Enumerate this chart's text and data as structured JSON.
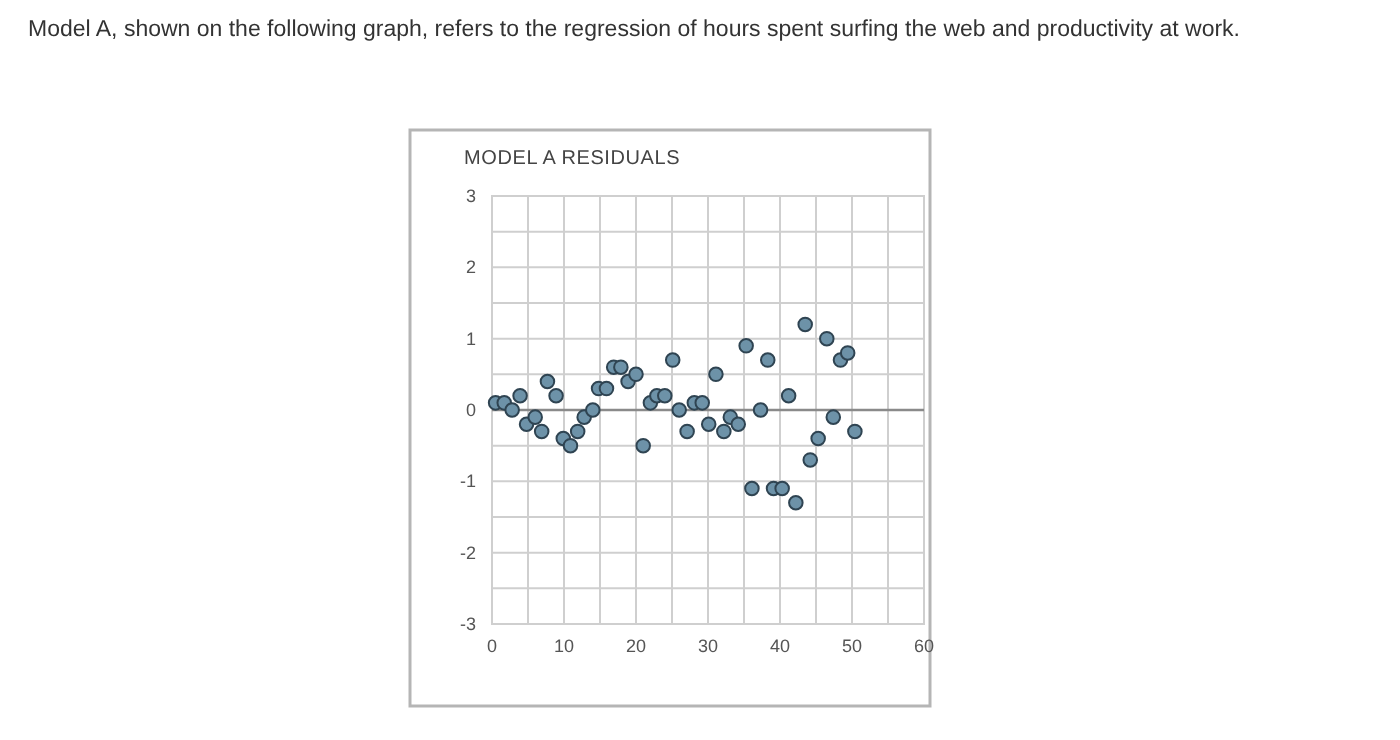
{
  "chart_data": {
    "type": "scatter",
    "title": "MODEL A RESIDUALS",
    "annotations": [
      "Model A, shown on the following graph, refers to the regression of hours spent surfing the web and productivity at work."
    ],
    "x": [
      0.5,
      1.7,
      2.8,
      3.9,
      4.8,
      6,
      6.9,
      7.7,
      8.9,
      9.9,
      10.9,
      11.9,
      12.8,
      14,
      14.8,
      15.9,
      16.9,
      17.9,
      18.9,
      20,
      21,
      22,
      22.9,
      24,
      25.1,
      26,
      27.1,
      28.1,
      29.2,
      30.1,
      31.1,
      32.2,
      33.1,
      34.2,
      35.3,
      36.1,
      37.3,
      38.3,
      39.1,
      40.3,
      41.2,
      42.2,
      43.5,
      44.2,
      45.3,
      46.5,
      47.4,
      48.4,
      49.4,
      50.4
    ],
    "values": [
      0.1,
      0.1,
      0.0,
      0.2,
      -0.2,
      -0.1,
      -0.3,
      0.4,
      0.2,
      -0.4,
      -0.5,
      -0.3,
      -0.1,
      0.0,
      0.3,
      0.3,
      0.6,
      0.6,
      0.4,
      0.5,
      -0.5,
      0.1,
      0.2,
      0.2,
      0.7,
      0.0,
      -0.3,
      0.1,
      0.1,
      -0.2,
      0.5,
      -0.3,
      -0.1,
      -0.2,
      0.9,
      -1.1,
      0.0,
      0.7,
      -1.1,
      -1.1,
      0.2,
      -1.3,
      1.2,
      -0.7,
      -0.4,
      1.0,
      -0.1,
      0.7,
      0.8,
      -0.3
    ],
    "color": "#6d92a8",
    "marker": "circle",
    "grid": true,
    "xlim": [
      0,
      60
    ],
    "xticks": [
      0,
      {
        "value": 5,
        "label": null
      },
      10,
      {
        "value": 15,
        "label": null
      },
      20,
      {
        "value": 25,
        "label": null
      },
      30,
      {
        "value": 35,
        "label": null
      },
      40,
      {
        "value": 45,
        "label": null
      },
      50,
      {
        "value": 55,
        "label": null
      },
      60
    ],
    "ylim": [
      -3,
      3
    ],
    "yticks": [
      -3,
      {
        "value": -2.5,
        "label": null
      },
      -2,
      {
        "value": -1.5,
        "label": null
      },
      -1,
      {
        "value": -0.5,
        "label": null
      },
      0,
      {
        "value": 0.5,
        "label": null
      },
      1,
      {
        "value": 1.5,
        "label": null
      },
      2,
      {
        "value": 2.5,
        "label": null
      },
      3
    ],
    "ref_lines": [
      {
        "axis": "y",
        "value": 0,
        "color": "#8a8a8a"
      }
    ]
  }
}
